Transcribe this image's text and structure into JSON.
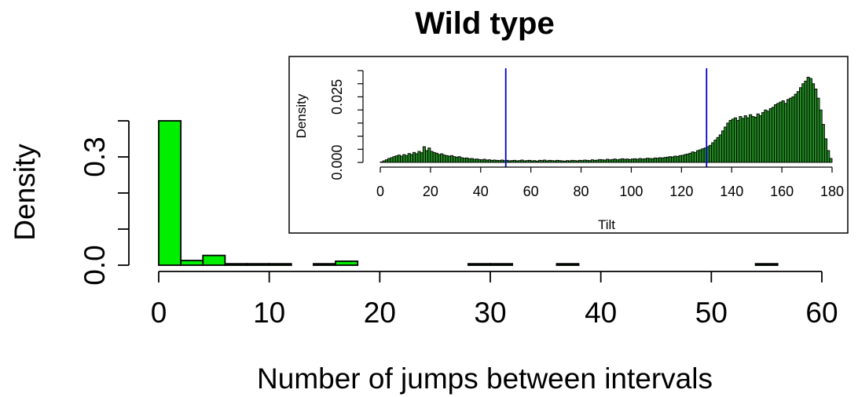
{
  "chart_data": [
    {
      "type": "bar",
      "role": "main-histogram",
      "title": "Wild type",
      "xlabel": "Number of jumps between intervals",
      "ylabel": "Density",
      "xlim": [
        0,
        60
      ],
      "ylim": [
        0,
        0.4
      ],
      "x_ticks": [
        0,
        10,
        20,
        30,
        40,
        50,
        60
      ],
      "y_ticks": [
        0.0,
        0.1,
        0.2,
        0.3,
        0.4
      ],
      "y_tick_labels": [
        "0.0",
        "",
        "",
        "0.3",
        ""
      ],
      "bin_width": 2,
      "bins": [
        {
          "x0": 0,
          "x1": 2,
          "value": 0.4
        },
        {
          "x0": 2,
          "x1": 4,
          "value": 0.013
        },
        {
          "x0": 4,
          "x1": 6,
          "value": 0.027
        },
        {
          "x0": 6,
          "x1": 8,
          "value": 0.004
        },
        {
          "x0": 8,
          "x1": 10,
          "value": 0.004
        },
        {
          "x0": 10,
          "x1": 12,
          "value": 0.004
        },
        {
          "x0": 14,
          "x1": 16,
          "value": 0.004
        },
        {
          "x0": 16,
          "x1": 18,
          "value": 0.011
        },
        {
          "x0": 28,
          "x1": 30,
          "value": 0.004
        },
        {
          "x0": 30,
          "x1": 32,
          "value": 0.004
        },
        {
          "x0": 36,
          "x1": 38,
          "value": 0.004
        },
        {
          "x0": 54,
          "x1": 56,
          "value": 0.004
        }
      ],
      "bar_color": "#00ee00",
      "edge_color": "#000000",
      "grid": false
    },
    {
      "type": "bar",
      "role": "inset-histogram",
      "title": "",
      "xlabel": "Tilt",
      "ylabel": "Density",
      "xlim": [
        0,
        180
      ],
      "ylim": [
        0,
        0.035
      ],
      "x_ticks": [
        0,
        20,
        40,
        60,
        80,
        100,
        120,
        140,
        160,
        180
      ],
      "y_ticks": [
        0.0,
        0.005,
        0.01,
        0.015,
        0.02,
        0.025,
        0.03,
        0.035
      ],
      "y_tick_labels": [
        "0.000",
        "",
        "",
        "",
        "",
        "0.025",
        "",
        ""
      ],
      "bin_width": 1,
      "density": [
        0.0002,
        0.0006,
        0.001,
        0.0015,
        0.0018,
        0.0022,
        0.0025,
        0.0028,
        0.0024,
        0.003,
        0.0026,
        0.0034,
        0.003,
        0.0038,
        0.0033,
        0.0042,
        0.0037,
        0.006,
        0.0045,
        0.0055,
        0.0042,
        0.0038,
        0.0035,
        0.003,
        0.0033,
        0.0028,
        0.0026,
        0.0024,
        0.0026,
        0.0022,
        0.002,
        0.0022,
        0.0018,
        0.0016,
        0.0017,
        0.0014,
        0.0015,
        0.0012,
        0.0013,
        0.0011,
        0.001,
        0.0012,
        0.0009,
        0.001,
        0.0008,
        0.0009,
        0.0008,
        0.0007,
        0.0009,
        0.0007,
        0.0008,
        0.0006,
        0.0007,
        0.0008,
        0.0006,
        0.0007,
        0.0009,
        0.0006,
        0.0007,
        0.0008,
        0.0006,
        0.0007,
        0.0005,
        0.0008,
        0.0007,
        0.0009,
        0.0006,
        0.0008,
        0.0007,
        0.0006,
        0.0008,
        0.0007,
        0.0006,
        0.0005,
        0.0007,
        0.0006,
        0.0008,
        0.0007,
        0.0006,
        0.0008,
        0.0007,
        0.0009,
        0.0008,
        0.0007,
        0.001,
        0.0008,
        0.0009,
        0.0011,
        0.001,
        0.0009,
        0.0012,
        0.001,
        0.0011,
        0.0013,
        0.001,
        0.0012,
        0.0014,
        0.0012,
        0.0013,
        0.0011,
        0.0013,
        0.0014,
        0.0012,
        0.0015,
        0.0013,
        0.0014,
        0.0016,
        0.0015,
        0.0014,
        0.0017,
        0.0016,
        0.0018,
        0.0017,
        0.0019,
        0.002,
        0.0022,
        0.0021,
        0.0024,
        0.0023,
        0.0026,
        0.0027,
        0.003,
        0.0032,
        0.0035,
        0.004,
        0.0038,
        0.0045,
        0.0048,
        0.0052,
        0.0055,
        0.006,
        0.0065,
        0.0075,
        0.0085,
        0.0095,
        0.0105,
        0.012,
        0.0135,
        0.015,
        0.016,
        0.0165,
        0.017,
        0.016,
        0.0175,
        0.0168,
        0.0178,
        0.017,
        0.0182,
        0.0175,
        0.0172,
        0.0185,
        0.0178,
        0.019,
        0.02,
        0.0195,
        0.0205,
        0.021,
        0.022,
        0.0225,
        0.023,
        0.0235,
        0.0225,
        0.024,
        0.0245,
        0.025,
        0.026,
        0.027,
        0.0285,
        0.03,
        0.031,
        0.0325,
        0.032,
        0.03,
        0.028,
        0.0245,
        0.02,
        0.0145,
        0.009,
        0.0045,
        0.0015
      ],
      "vertical_lines": [
        50,
        130
      ],
      "vertical_line_color": "#0000cc",
      "bar_color": "#228b22",
      "edge_color": "#000000",
      "grid": false
    }
  ]
}
